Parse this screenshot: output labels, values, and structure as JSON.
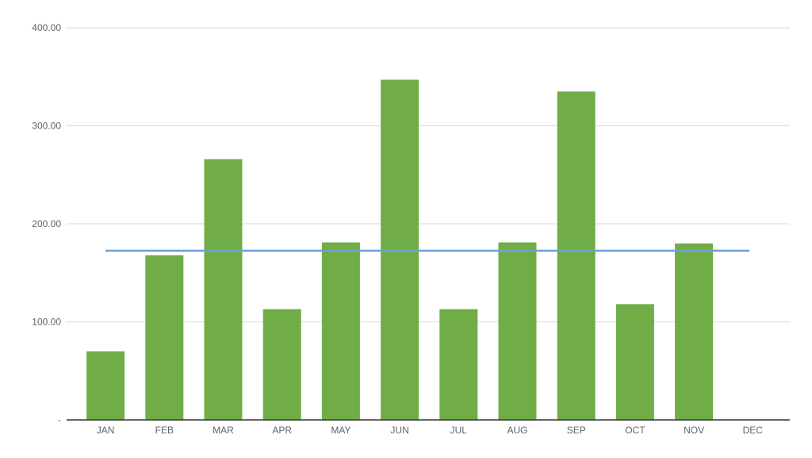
{
  "chart_data": {
    "type": "bar",
    "title": "",
    "xlabel": "",
    "ylabel": "",
    "categories": [
      "JAN",
      "FEB",
      "MAR",
      "APR",
      "MAY",
      "JUN",
      "JUL",
      "AUG",
      "SEP",
      "OCT",
      "NOV",
      "DEC"
    ],
    "values": [
      70,
      168,
      266,
      113,
      181,
      347,
      113,
      181,
      335,
      118,
      180,
      0
    ],
    "reference_line": {
      "type": "horizontal",
      "value": 172.6,
      "color": "#6fa0d6"
    },
    "ylim": [
      0,
      400
    ],
    "yticks": [
      0,
      100,
      200,
      300,
      400
    ],
    "ytick_labels": [
      "-",
      "100.00",
      "200.00",
      "300.00",
      "400.00"
    ],
    "grid": true,
    "legend": "none",
    "bar_color": "#70ad47"
  }
}
